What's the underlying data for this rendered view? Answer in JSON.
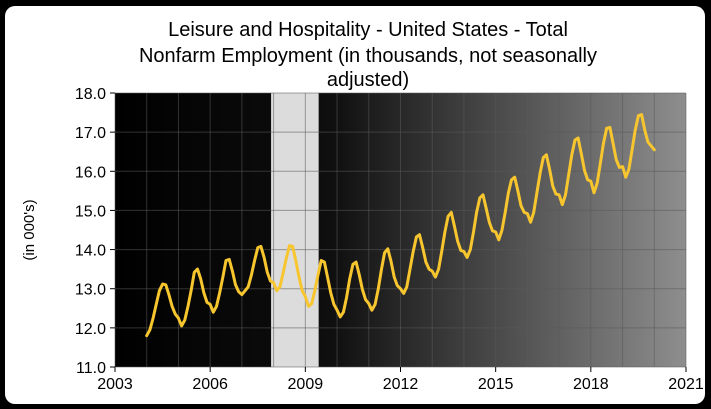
{
  "chart_data": {
    "type": "line",
    "title_lines": [
      "Leisure and Hospitality - United States - Total",
      "Nonfarm Employment (in thousands, not seasonally",
      "adjusted)"
    ],
    "xlabel": "",
    "ylabel": "(in 000's)",
    "xlim": [
      2003,
      2021
    ],
    "ylim": [
      11.0,
      18.0
    ],
    "x_ticks": [
      "2003",
      "2006",
      "2009",
      "2012",
      "2015",
      "2018",
      "2021"
    ],
    "y_ticks": [
      "11.0",
      "12.0",
      "13.0",
      "14.0",
      "15.0",
      "16.0",
      "17.0",
      "18.0"
    ],
    "grid": true,
    "recession_band": {
      "start": 2007.92,
      "end": 2009.42
    },
    "series": [
      {
        "line_color": "#f7c62f",
        "points": [
          [
            2004.0,
            11.8
          ],
          [
            2004.1,
            11.95
          ],
          [
            2004.2,
            12.25
          ],
          [
            2004.3,
            12.6
          ],
          [
            2004.4,
            12.95
          ],
          [
            2004.5,
            13.12
          ],
          [
            2004.6,
            13.1
          ],
          [
            2004.7,
            12.85
          ],
          [
            2004.8,
            12.55
          ],
          [
            2004.9,
            12.35
          ],
          [
            2005.0,
            12.25
          ],
          [
            2005.1,
            12.05
          ],
          [
            2005.2,
            12.2
          ],
          [
            2005.3,
            12.55
          ],
          [
            2005.4,
            12.95
          ],
          [
            2005.5,
            13.42
          ],
          [
            2005.6,
            13.5
          ],
          [
            2005.7,
            13.25
          ],
          [
            2005.8,
            12.9
          ],
          [
            2005.9,
            12.65
          ],
          [
            2006.0,
            12.6
          ],
          [
            2006.1,
            12.4
          ],
          [
            2006.2,
            12.55
          ],
          [
            2006.3,
            12.9
          ],
          [
            2006.4,
            13.3
          ],
          [
            2006.5,
            13.72
          ],
          [
            2006.6,
            13.75
          ],
          [
            2006.7,
            13.45
          ],
          [
            2006.8,
            13.1
          ],
          [
            2006.9,
            12.92
          ],
          [
            2007.0,
            12.85
          ],
          [
            2007.1,
            12.95
          ],
          [
            2007.2,
            13.05
          ],
          [
            2007.3,
            13.35
          ],
          [
            2007.4,
            13.72
          ],
          [
            2007.5,
            14.05
          ],
          [
            2007.6,
            14.08
          ],
          [
            2007.7,
            13.8
          ],
          [
            2007.8,
            13.42
          ],
          [
            2007.9,
            13.2
          ],
          [
            2008.0,
            13.15
          ],
          [
            2008.1,
            12.95
          ],
          [
            2008.2,
            13.05
          ],
          [
            2008.3,
            13.4
          ],
          [
            2008.4,
            13.78
          ],
          [
            2008.5,
            14.1
          ],
          [
            2008.6,
            14.08
          ],
          [
            2008.7,
            13.72
          ],
          [
            2008.8,
            13.3
          ],
          [
            2008.9,
            12.95
          ],
          [
            2009.0,
            12.8
          ],
          [
            2009.1,
            12.55
          ],
          [
            2009.2,
            12.62
          ],
          [
            2009.3,
            12.95
          ],
          [
            2009.4,
            13.35
          ],
          [
            2009.5,
            13.72
          ],
          [
            2009.6,
            13.68
          ],
          [
            2009.7,
            13.3
          ],
          [
            2009.8,
            12.9
          ],
          [
            2009.9,
            12.6
          ],
          [
            2010.0,
            12.45
          ],
          [
            2010.1,
            12.28
          ],
          [
            2010.2,
            12.4
          ],
          [
            2010.3,
            12.78
          ],
          [
            2010.4,
            13.25
          ],
          [
            2010.5,
            13.62
          ],
          [
            2010.6,
            13.68
          ],
          [
            2010.7,
            13.35
          ],
          [
            2010.8,
            12.98
          ],
          [
            2010.9,
            12.72
          ],
          [
            2011.0,
            12.62
          ],
          [
            2011.1,
            12.45
          ],
          [
            2011.2,
            12.6
          ],
          [
            2011.3,
            13.0
          ],
          [
            2011.4,
            13.5
          ],
          [
            2011.5,
            13.92
          ],
          [
            2011.6,
            14.02
          ],
          [
            2011.7,
            13.7
          ],
          [
            2011.8,
            13.3
          ],
          [
            2011.9,
            13.08
          ],
          [
            2012.0,
            13.0
          ],
          [
            2012.1,
            12.88
          ],
          [
            2012.2,
            13.05
          ],
          [
            2012.3,
            13.5
          ],
          [
            2012.4,
            13.95
          ],
          [
            2012.5,
            14.32
          ],
          [
            2012.6,
            14.38
          ],
          [
            2012.7,
            14.05
          ],
          [
            2012.8,
            13.68
          ],
          [
            2012.9,
            13.5
          ],
          [
            2013.0,
            13.45
          ],
          [
            2013.1,
            13.3
          ],
          [
            2013.2,
            13.5
          ],
          [
            2013.3,
            13.95
          ],
          [
            2013.4,
            14.45
          ],
          [
            2013.5,
            14.85
          ],
          [
            2013.6,
            14.95
          ],
          [
            2013.7,
            14.6
          ],
          [
            2013.8,
            14.22
          ],
          [
            2013.9,
            13.98
          ],
          [
            2014.0,
            13.95
          ],
          [
            2014.1,
            13.8
          ],
          [
            2014.2,
            14.0
          ],
          [
            2014.3,
            14.45
          ],
          [
            2014.4,
            14.95
          ],
          [
            2014.5,
            15.32
          ],
          [
            2014.6,
            15.4
          ],
          [
            2014.7,
            15.05
          ],
          [
            2014.8,
            14.7
          ],
          [
            2014.9,
            14.48
          ],
          [
            2015.0,
            14.45
          ],
          [
            2015.1,
            14.25
          ],
          [
            2015.2,
            14.5
          ],
          [
            2015.3,
            14.95
          ],
          [
            2015.4,
            15.45
          ],
          [
            2015.5,
            15.78
          ],
          [
            2015.6,
            15.85
          ],
          [
            2015.7,
            15.5
          ],
          [
            2015.8,
            15.12
          ],
          [
            2015.9,
            14.95
          ],
          [
            2016.0,
            14.92
          ],
          [
            2016.1,
            14.7
          ],
          [
            2016.2,
            14.95
          ],
          [
            2016.3,
            15.45
          ],
          [
            2016.4,
            15.95
          ],
          [
            2016.5,
            16.35
          ],
          [
            2016.6,
            16.42
          ],
          [
            2016.7,
            16.05
          ],
          [
            2016.8,
            15.62
          ],
          [
            2016.9,
            15.42
          ],
          [
            2017.0,
            15.4
          ],
          [
            2017.1,
            15.15
          ],
          [
            2017.2,
            15.4
          ],
          [
            2017.3,
            15.9
          ],
          [
            2017.4,
            16.42
          ],
          [
            2017.5,
            16.8
          ],
          [
            2017.6,
            16.85
          ],
          [
            2017.7,
            16.45
          ],
          [
            2017.8,
            16.02
          ],
          [
            2017.9,
            15.78
          ],
          [
            2018.0,
            15.75
          ],
          [
            2018.1,
            15.45
          ],
          [
            2018.2,
            15.7
          ],
          [
            2018.3,
            16.2
          ],
          [
            2018.4,
            16.72
          ],
          [
            2018.5,
            17.1
          ],
          [
            2018.6,
            17.12
          ],
          [
            2018.7,
            16.72
          ],
          [
            2018.8,
            16.3
          ],
          [
            2018.9,
            16.1
          ],
          [
            2019.0,
            16.12
          ],
          [
            2019.1,
            15.85
          ],
          [
            2019.2,
            16.05
          ],
          [
            2019.3,
            16.55
          ],
          [
            2019.4,
            17.05
          ],
          [
            2019.5,
            17.42
          ],
          [
            2019.6,
            17.45
          ],
          [
            2019.7,
            17.05
          ],
          [
            2019.8,
            16.75
          ],
          [
            2019.9,
            16.65
          ],
          [
            2020.0,
            16.55
          ]
        ]
      }
    ]
  }
}
